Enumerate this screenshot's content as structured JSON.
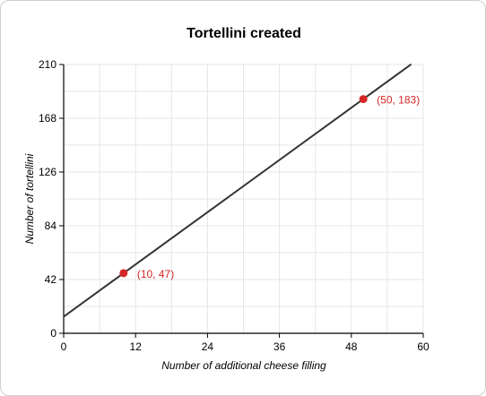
{
  "chart_data": {
    "type": "line",
    "title": "Tortellini created",
    "xlabel": "Number of additional cheese filling",
    "ylabel": "Number of tortellini",
    "xlim": [
      0,
      60
    ],
    "ylim": [
      0,
      210
    ],
    "xticks": [
      0,
      12,
      24,
      36,
      48,
      60
    ],
    "yticks": [
      0,
      42,
      84,
      126,
      168,
      210
    ],
    "grid": true,
    "line": {
      "x": [
        0,
        58
      ],
      "y": [
        13,
        210.2
      ],
      "color": "#333333"
    },
    "points": [
      {
        "x": 10,
        "y": 47,
        "label": "(10, 47)"
      },
      {
        "x": 50,
        "y": 183,
        "label": "(50, 183)"
      }
    ],
    "point_color": "#d62728",
    "label_color": "#d62728",
    "grid_color": "#e6e6e6"
  }
}
